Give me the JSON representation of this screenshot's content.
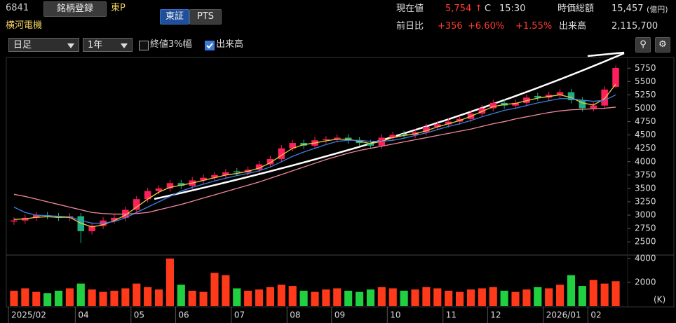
{
  "header": {
    "code": "6841",
    "register": "銘柄登録",
    "market": "東P",
    "name": "横河電機",
    "tabs": [
      "東証",
      "PTS"
    ],
    "price_label": "現在値",
    "price": "5,754",
    "arrow": "↑",
    "close_flag": "C",
    "time": "15:30",
    "cap_label": "時価総額",
    "cap": "15,457",
    "cap_unit": "(億円)",
    "change_label": "前日比",
    "change": "+356",
    "change_pct": "+6.60%",
    "change_pct2": "+1.55%",
    "volume_label": "出来高",
    "volume": "2,115,700"
  },
  "toolbar": {
    "period": "日足",
    "range": "1年",
    "options": [
      {
        "label": "終値3%幅",
        "checked": false
      },
      {
        "label": "出来高",
        "checked": true
      }
    ]
  },
  "chart_data": {
    "type": "candlestick",
    "up_color": "#ff1f5a",
    "down_color": "#20b080",
    "categories": [
      "2025/02",
      null,
      null,
      null,
      null,
      null,
      "04",
      null,
      null,
      null,
      null,
      "05",
      null,
      null,
      null,
      "06",
      null,
      null,
      null,
      null,
      "07",
      null,
      null,
      null,
      null,
      "08",
      null,
      null,
      null,
      "09",
      null,
      null,
      null,
      null,
      "10",
      null,
      null,
      null,
      null,
      "11",
      null,
      null,
      null,
      "12",
      null,
      null,
      null,
      null,
      "2026/01",
      null,
      null,
      null,
      "02",
      null,
      null
    ],
    "open": [
      2880,
      2900,
      2950,
      3000,
      2980,
      2950,
      2980,
      2700,
      2800,
      2900,
      2950,
      3100,
      3300,
      3450,
      3500,
      3600,
      3550,
      3650,
      3700,
      3750,
      3820,
      3800,
      3850,
      3950,
      4050,
      4250,
      4350,
      4300,
      4400,
      4420,
      4450,
      4400,
      4350,
      4300,
      4450,
      4520,
      4500,
      4550,
      4650,
      4700,
      4750,
      4800,
      4900,
      5000,
      5100,
      5050,
      5100,
      5230,
      5200,
      5250,
      5300,
      5150,
      5000,
      5050,
      5400
    ],
    "high": [
      2960,
      3010,
      3060,
      3060,
      3040,
      3040,
      3040,
      2860,
      2960,
      3010,
      3160,
      3360,
      3510,
      3560,
      3660,
      3660,
      3710,
      3760,
      3810,
      3860,
      3880,
      3910,
      4010,
      4110,
      4310,
      4410,
      4410,
      4460,
      4480,
      4510,
      4510,
      4460,
      4410,
      4510,
      4560,
      4580,
      4610,
      4710,
      4760,
      4810,
      4860,
      4960,
      5060,
      5160,
      5160,
      5160,
      5260,
      5290,
      5310,
      5360,
      5360,
      5210,
      5110,
      5410,
      5800
    ],
    "low": [
      2820,
      2840,
      2890,
      2920,
      2890,
      2890,
      2480,
      2640,
      2740,
      2840,
      2890,
      3040,
      3240,
      3390,
      3440,
      3490,
      3490,
      3590,
      3640,
      3690,
      3740,
      3740,
      3790,
      3890,
      3990,
      4190,
      4240,
      4240,
      4340,
      4360,
      4340,
      4290,
      4240,
      4240,
      4390,
      4440,
      4440,
      4490,
      4590,
      4640,
      4690,
      4740,
      4840,
      4940,
      4990,
      4990,
      5040,
      5140,
      5140,
      5190,
      5090,
      4940,
      4940,
      4990,
      5380
    ],
    "close": [
      2900,
      2950,
      3000,
      2980,
      2950,
      2980,
      2700,
      2800,
      2900,
      2950,
      3100,
      3300,
      3450,
      3500,
      3600,
      3550,
      3650,
      3700,
      3750,
      3800,
      3800,
      3850,
      3950,
      4050,
      4250,
      4350,
      4300,
      4400,
      4420,
      4450,
      4400,
      4350,
      4300,
      4450,
      4500,
      4500,
      4550,
      4650,
      4700,
      4750,
      4800,
      4900,
      5000,
      5100,
      5050,
      5100,
      5200,
      5200,
      5250,
      5300,
      5150,
      5000,
      5050,
      5350,
      5754
    ],
    "moving_averages": [
      {
        "color": "#e8d040",
        "values": [
          2920,
          2930,
          2960,
          2970,
          2960,
          2960,
          2850,
          2780,
          2820,
          2900,
          3000,
          3150,
          3300,
          3430,
          3520,
          3560,
          3600,
          3650,
          3700,
          3750,
          3780,
          3820,
          3880,
          3980,
          4120,
          4250,
          4320,
          4350,
          4390,
          4420,
          4420,
          4380,
          4340,
          4380,
          4450,
          4490,
          4520,
          4580,
          4650,
          4710,
          4770,
          4850,
          4940,
          5030,
          5070,
          5090,
          5140,
          5190,
          5220,
          5250,
          5200,
          5100,
          5060,
          5180,
          5450
        ]
      },
      {
        "color": "#3d7fe0",
        "values": [
          3150,
          3050,
          3000,
          2990,
          2980,
          2970,
          2900,
          2850,
          2850,
          2880,
          2950,
          3050,
          3150,
          3250,
          3350,
          3450,
          3520,
          3580,
          3640,
          3690,
          3740,
          3780,
          3830,
          3900,
          4000,
          4100,
          4180,
          4250,
          4320,
          4380,
          4400,
          4400,
          4380,
          4380,
          4400,
          4440,
          4490,
          4540,
          4600,
          4660,
          4710,
          4770,
          4840,
          4900,
          4960,
          5000,
          5050,
          5100,
          5140,
          5180,
          5180,
          5150,
          5130,
          5150,
          5250
        ]
      },
      {
        "color": "#f08a9a",
        "values": [
          3390,
          3350,
          3300,
          3250,
          3200,
          3150,
          3100,
          3050,
          3030,
          3020,
          3020,
          3030,
          3050,
          3100,
          3150,
          3200,
          3260,
          3320,
          3380,
          3440,
          3500,
          3560,
          3620,
          3690,
          3760,
          3830,
          3900,
          3970,
          4040,
          4100,
          4160,
          4210,
          4250,
          4290,
          4330,
          4370,
          4410,
          4450,
          4490,
          4530,
          4570,
          4610,
          4660,
          4710,
          4750,
          4800,
          4840,
          4880,
          4920,
          4950,
          4970,
          4980,
          4990,
          5000,
          5020
        ]
      }
    ],
    "ylim": [
      2280,
      5950
    ],
    "yticks": [
      2500,
      2750,
      3000,
      3250,
      3500,
      3750,
      4000,
      4250,
      4500,
      4750,
      5000,
      5250,
      5500,
      5750
    ],
    "volume": {
      "values": [
        1300,
        1500,
        1200,
        1100,
        1300,
        1500,
        1900,
        1400,
        1200,
        1300,
        1500,
        1900,
        1600,
        1400,
        4000,
        1800,
        1300,
        1200,
        2800,
        2600,
        1500,
        1300,
        1400,
        1600,
        1800,
        1700,
        1300,
        1200,
        1400,
        1500,
        1300,
        1200,
        1400,
        1600,
        1500,
        1300,
        1400,
        1600,
        1500,
        1300,
        1200,
        1400,
        1500,
        1600,
        1300,
        1200,
        1400,
        1600,
        1500,
        1800,
        2600,
        1700,
        2200,
        1900,
        2100
      ],
      "ylim": [
        0,
        4000
      ],
      "yticks": [
        2000,
        4000
      ],
      "unit": "(K)"
    }
  }
}
